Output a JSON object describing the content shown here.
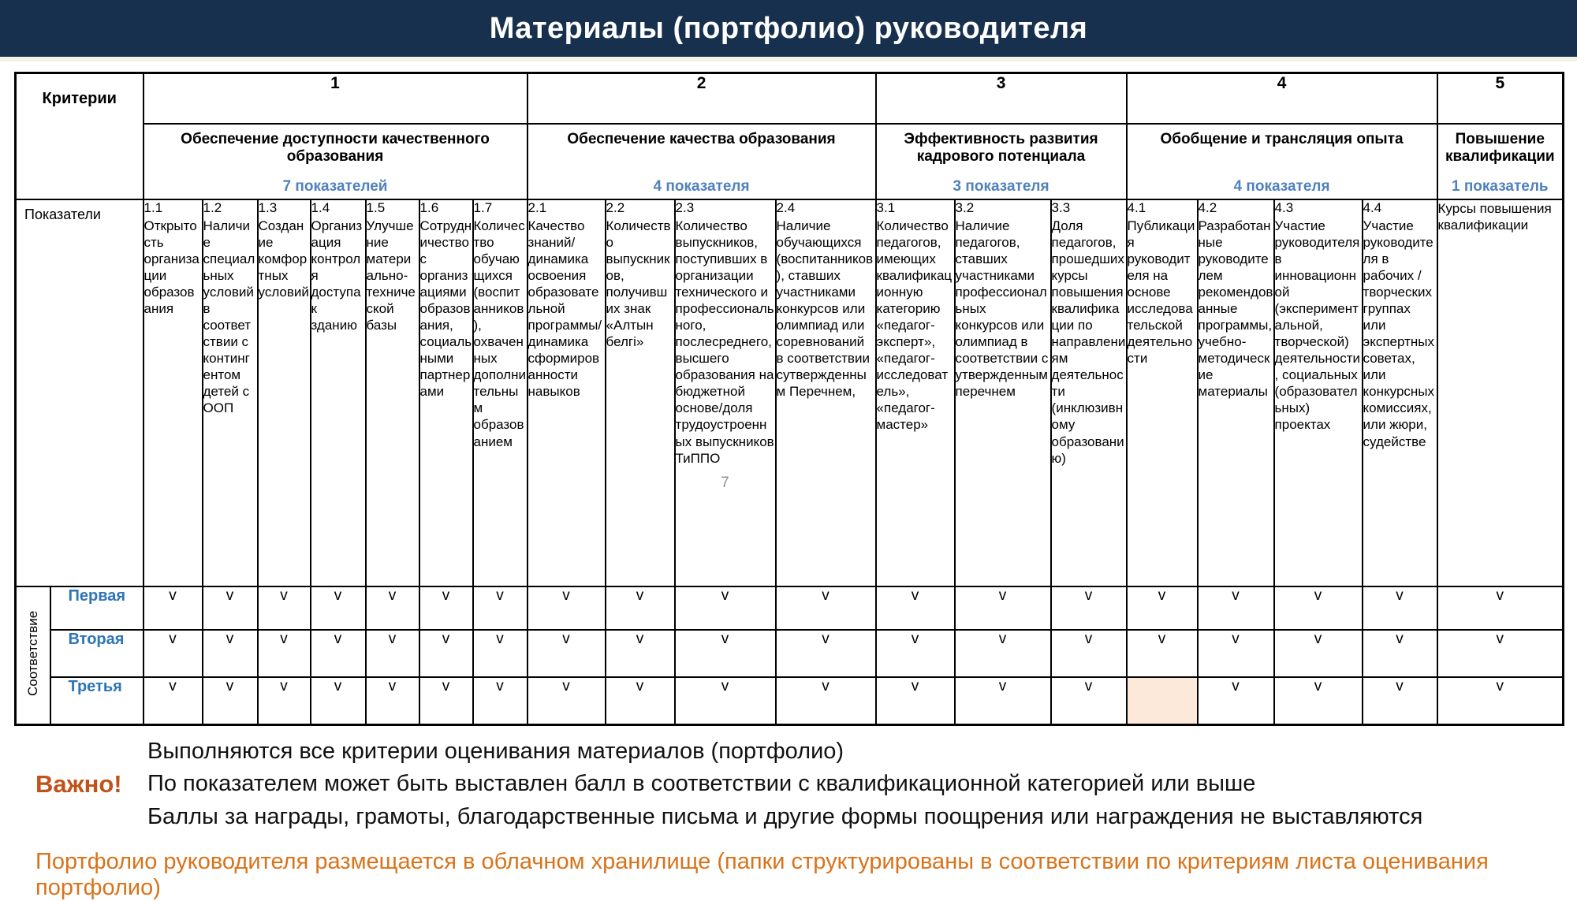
{
  "title": "Материалы (портфолио) руководителя",
  "colors": {
    "titlebar_bg": "#16304e",
    "subtitle_blue": "#4f81bd",
    "row_label_blue": "#2e75b6",
    "important_orange": "#c0531a",
    "storage_orange": "#d9731a",
    "highlight_cell": "#fce9d9"
  },
  "table": {
    "criteria_label": "Критерии",
    "indicators_label": "Показатели",
    "compliance_label": "Соответствие",
    "check_mark": "v",
    "groups": [
      {
        "num": "1",
        "title": "Обеспечение доступности качественного образования",
        "subtitle": "7 показателей",
        "span": 7
      },
      {
        "num": "2",
        "title": "Обеспечение качества образования",
        "subtitle": "4 показателя",
        "span": 4
      },
      {
        "num": "3",
        "title": "Эффективность развития кадрового потенциала",
        "subtitle": "3 показателя",
        "span": 3
      },
      {
        "num": "4",
        "title": "Обобщение и трансляция опыта",
        "subtitle": "4 показателя",
        "span": 4
      },
      {
        "num": "5",
        "title": "Повышение квалификации",
        "subtitle": "1 показатель",
        "span": 1
      }
    ],
    "indicators": [
      {
        "num": "1.1",
        "text": "Открытость организации образования"
      },
      {
        "num": "1.2",
        "text": "Наличие специальных условий в соответствии с контингентом детей с ООП"
      },
      {
        "num": "1.3",
        "text": "Создание комфортных условий"
      },
      {
        "num": "1.4",
        "text": "Организация контроля доступа к зданию"
      },
      {
        "num": "1.5",
        "text": "Улучшение материально-технической базы"
      },
      {
        "num": "1.6",
        "text": "Сотрудничество с организациями образования, социальными партнерами"
      },
      {
        "num": "1.7",
        "text": "Количество обучающихся (воспитанников), охваченных дополнительным образованием"
      },
      {
        "num": "2.1",
        "text": "Качество знаний/динамика освоения образовательной программы/динамика сформированности навыков"
      },
      {
        "num": "2.2",
        "text": "Количество выпускников, получивших знак «Алтын белгі»"
      },
      {
        "num": "2.3",
        "text": "Количество выпускников, поступивших в организации технического и профессионального, послесреднего, высшего образования на бюджетной основе/доля трудоустроенных выпускников ТиППО",
        "note": "7"
      },
      {
        "num": "2.4",
        "text": "Наличие обучающихся (воспитанников), ставших участниками конкурсов или олимпиад или соревнований в соответствии сутвержденным Перечнем,"
      },
      {
        "num": "3.1",
        "text": "Количество педагогов, имеющих квалификационную категорию «педагог-эксперт», «педагог-исследователь», «педагог-мастер»"
      },
      {
        "num": "3.2",
        "text": "Наличие педагогов, ставших участниками профессиональных конкурсов или олимпиад в соответствии с утвержденным перечнем"
      },
      {
        "num": "3.3",
        "text": "Доля педагогов, прошедших курсы повышения квалификации по направлениям деятельности (инклюзивному образованию)"
      },
      {
        "num": "4.1",
        "text": "Публикация руководителя на основе исследовательской деятельности"
      },
      {
        "num": "4.2",
        "text": "Разработанные руководителем рекомендованные программы, учебно-методические материалы"
      },
      {
        "num": "4.3",
        "text": "Участие руководителя в инновационной (экспериментальной, творческой) деятельности, социальных (образовательных) проектах"
      },
      {
        "num": "4.4",
        "text": "Участие руководителя в рабочих / творческих группах или экспертных советах, или конкурсных комиссиях, или жюри, судействе"
      },
      {
        "num": "",
        "text": "Курсы повышения квалификации"
      }
    ],
    "compliance_rows": [
      {
        "label": "Первая",
        "checks": [
          "v",
          "v",
          "v",
          "v",
          "v",
          "v",
          "v",
          "v",
          "v",
          "v",
          "v",
          "v",
          "v",
          "v",
          "v",
          "v",
          "v",
          "v",
          "v"
        ]
      },
      {
        "label": "Вторая",
        "checks": [
          "v",
          "v",
          "v",
          "v",
          "v",
          "v",
          "v",
          "v",
          "v",
          "v",
          "v",
          "v",
          "v",
          "v",
          "v",
          "v",
          "v",
          "v",
          "v"
        ]
      },
      {
        "label": "Третья",
        "checks": [
          "v",
          "v",
          "v",
          "v",
          "v",
          "v",
          "v",
          "v",
          "v",
          "v",
          "v",
          "v",
          "v",
          "v",
          "",
          "v",
          "v",
          "v",
          "v"
        ]
      }
    ],
    "highlight": {
      "row": 2,
      "col": 14
    }
  },
  "footer": {
    "important_label": "Важно!",
    "lines": [
      "Выполняются все критерии оценивания материалов (портфолио)",
      "По показателем может быть выставлен балл в соответствии с квалификационной категорией или выше",
      "Баллы за награды, грамоты, благодарственные письма и другие формы поощрения или награждения не выставляются"
    ],
    "storage_note": "Портфолио руководителя размещается в облачном хранилище (папки структурированы в соответствии по критериям листа оценивания портфолио)"
  }
}
